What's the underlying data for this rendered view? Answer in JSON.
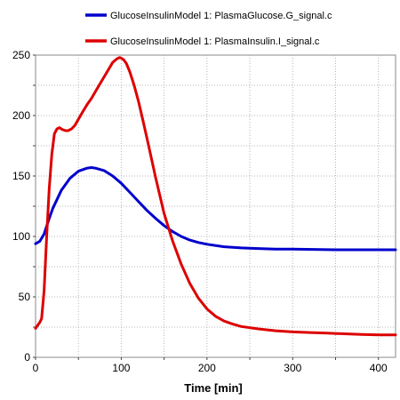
{
  "chart_data": {
    "type": "line",
    "xlabel": "Time [min]",
    "ylabel": "",
    "xlim": [
      0,
      420
    ],
    "ylim": [
      0,
      250
    ],
    "x_ticks": [
      0,
      100,
      200,
      300,
      400
    ],
    "y_ticks": [
      0,
      50,
      100,
      150,
      200,
      250
    ],
    "grid": true,
    "legend_placement": "top",
    "series": [
      {
        "name": "GlucoseInsulinModel 1: PlasmaGlucose.G_signal.c",
        "color": "#0000cc",
        "x": [
          0,
          5,
          10,
          15,
          20,
          30,
          40,
          50,
          60,
          65,
          70,
          80,
          90,
          100,
          110,
          120,
          130,
          140,
          150,
          160,
          170,
          180,
          190,
          200,
          220,
          240,
          260,
          280,
          300,
          350,
          400,
          420
        ],
        "y": [
          94,
          96,
          102,
          113,
          123,
          138,
          148,
          154,
          156.5,
          157,
          156.5,
          154.5,
          150,
          144,
          136.5,
          129,
          121.5,
          115,
          109,
          104,
          100,
          97,
          95,
          93.5,
          91.5,
          90.5,
          90,
          89.5,
          89.5,
          89,
          89,
          89
        ]
      },
      {
        "name": "GlucoseInsulinModel 1: PlasmaInsulin.I_signal.c",
        "color": "#dd0000",
        "x": [
          0,
          3,
          5,
          7,
          10,
          13,
          16,
          19,
          22,
          25,
          28,
          31,
          35,
          38,
          42,
          46,
          50,
          55,
          60,
          65,
          70,
          75,
          80,
          85,
          90,
          95,
          98,
          100,
          103,
          106,
          110,
          115,
          120,
          125,
          130,
          135,
          140,
          145,
          150,
          160,
          170,
          180,
          190,
          200,
          210,
          220,
          230,
          240,
          260,
          280,
          300,
          320,
          340,
          360,
          380,
          400,
          420
        ],
        "y": [
          24,
          27,
          29,
          32,
          55,
          100,
          140,
          168,
          185,
          189,
          190,
          188.5,
          187.5,
          187.5,
          189,
          192,
          197,
          203,
          209,
          214,
          220,
          226,
          232,
          238,
          244,
          247,
          248,
          247.5,
          246,
          243,
          236,
          225,
          212,
          197,
          181,
          165,
          149,
          134,
          119,
          96,
          77,
          61,
          49,
          40,
          34,
          30,
          27.5,
          25.5,
          23.5,
          22,
          21,
          20.5,
          20,
          19.5,
          19,
          18.5,
          18.5
        ]
      }
    ]
  }
}
